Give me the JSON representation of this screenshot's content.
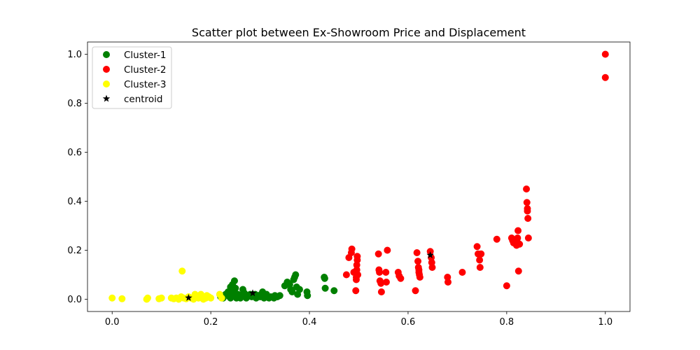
{
  "chart_data": {
    "type": "scatter",
    "title": "Scatter plot between Ex-Showroom Price and Displacement",
    "xlabel": "",
    "ylabel": "",
    "xlim": [
      -0.05,
      1.05
    ],
    "ylim": [
      -0.05,
      1.05
    ],
    "xticks": [
      "0.0",
      "0.2",
      "0.4",
      "0.6",
      "0.8",
      "1.0"
    ],
    "yticks": [
      "0.0",
      "0.2",
      "0.4",
      "0.6",
      "0.8",
      "1.0"
    ],
    "grid": false,
    "legend_position": "top-left",
    "series": [
      {
        "name": "Cluster-1",
        "color": "#008000",
        "marker": "circle",
        "points": [
          [
            0.22,
            0.01
          ],
          [
            0.225,
            0.005
          ],
          [
            0.23,
            0.02
          ],
          [
            0.235,
            0.03
          ],
          [
            0.238,
            0.01
          ],
          [
            0.24,
            0.05
          ],
          [
            0.24,
            0.005
          ],
          [
            0.242,
            0.04
          ],
          [
            0.244,
            0.06
          ],
          [
            0.245,
            0.02
          ],
          [
            0.247,
            0.03
          ],
          [
            0.248,
            0.075
          ],
          [
            0.25,
            0.01
          ],
          [
            0.25,
            0.045
          ],
          [
            0.252,
            0.005
          ],
          [
            0.255,
            0.02
          ],
          [
            0.258,
            0.015
          ],
          [
            0.26,
            0.005
          ],
          [
            0.262,
            0.01
          ],
          [
            0.265,
            0.04
          ],
          [
            0.265,
            0.02
          ],
          [
            0.268,
            0.025
          ],
          [
            0.27,
            0.01
          ],
          [
            0.272,
            0.005
          ],
          [
            0.275,
            0.015
          ],
          [
            0.28,
            0.02
          ],
          [
            0.283,
            0.01
          ],
          [
            0.29,
            0.02
          ],
          [
            0.292,
            0.005
          ],
          [
            0.295,
            0.015
          ],
          [
            0.3,
            0.01
          ],
          [
            0.302,
            0.02
          ],
          [
            0.305,
            0.03
          ],
          [
            0.308,
            0.005
          ],
          [
            0.31,
            0.01
          ],
          [
            0.313,
            0.02
          ],
          [
            0.318,
            0.005
          ],
          [
            0.322,
            0.01
          ],
          [
            0.328,
            0.005
          ],
          [
            0.33,
            0.015
          ],
          [
            0.335,
            0.01
          ],
          [
            0.34,
            0.015
          ],
          [
            0.35,
            0.055
          ],
          [
            0.355,
            0.07
          ],
          [
            0.36,
            0.06
          ],
          [
            0.362,
            0.04
          ],
          [
            0.365,
            0.03
          ],
          [
            0.368,
            0.08
          ],
          [
            0.37,
            0.09
          ],
          [
            0.372,
            0.1
          ],
          [
            0.374,
            0.05
          ],
          [
            0.376,
            0.02
          ],
          [
            0.38,
            0.04
          ],
          [
            0.395,
            0.03
          ],
          [
            0.396,
            0.015
          ],
          [
            0.43,
            0.09
          ],
          [
            0.431,
            0.085
          ],
          [
            0.432,
            0.045
          ],
          [
            0.45,
            0.035
          ]
        ]
      },
      {
        "name": "Cluster-2",
        "color": "#ff0000",
        "marker": "circle",
        "points": [
          [
            0.475,
            0.1
          ],
          [
            0.48,
            0.17
          ],
          [
            0.485,
            0.19
          ],
          [
            0.486,
            0.205
          ],
          [
            0.49,
            0.11
          ],
          [
            0.494,
            0.035
          ],
          [
            0.495,
            0.08
          ],
          [
            0.495,
            0.09
          ],
          [
            0.496,
            0.12
          ],
          [
            0.496,
            0.14
          ],
          [
            0.497,
            0.16
          ],
          [
            0.497,
            0.175
          ],
          [
            0.498,
            0.1
          ],
          [
            0.54,
            0.185
          ],
          [
            0.541,
            0.12
          ],
          [
            0.542,
            0.11
          ],
          [
            0.543,
            0.075
          ],
          [
            0.545,
            0.065
          ],
          [
            0.546,
            0.03
          ],
          [
            0.555,
            0.11
          ],
          [
            0.556,
            0.07
          ],
          [
            0.558,
            0.2
          ],
          [
            0.58,
            0.11
          ],
          [
            0.582,
            0.095
          ],
          [
            0.585,
            0.085
          ],
          [
            0.615,
            0.035
          ],
          [
            0.618,
            0.19
          ],
          [
            0.62,
            0.155
          ],
          [
            0.621,
            0.13
          ],
          [
            0.622,
            0.12
          ],
          [
            0.622,
            0.11
          ],
          [
            0.623,
            0.1
          ],
          [
            0.624,
            0.09
          ],
          [
            0.645,
            0.195
          ],
          [
            0.647,
            0.17
          ],
          [
            0.648,
            0.15
          ],
          [
            0.649,
            0.13
          ],
          [
            0.68,
            0.09
          ],
          [
            0.681,
            0.07
          ],
          [
            0.71,
            0.11
          ],
          [
            0.74,
            0.215
          ],
          [
            0.742,
            0.185
          ],
          [
            0.745,
            0.16
          ],
          [
            0.746,
            0.13
          ],
          [
            0.748,
            0.185
          ],
          [
            0.78,
            0.245
          ],
          [
            0.8,
            0.055
          ],
          [
            0.81,
            0.25
          ],
          [
            0.812,
            0.24
          ],
          [
            0.814,
            0.23
          ],
          [
            0.82,
            0.22
          ],
          [
            0.821,
            0.235
          ],
          [
            0.822,
            0.25
          ],
          [
            0.823,
            0.28
          ],
          [
            0.824,
            0.115
          ],
          [
            0.826,
            0.225
          ],
          [
            0.84,
            0.45
          ],
          [
            0.841,
            0.395
          ],
          [
            0.842,
            0.37
          ],
          [
            0.842,
            0.36
          ],
          [
            0.843,
            0.33
          ],
          [
            0.844,
            0.25
          ],
          [
            1.0,
            1.0
          ],
          [
            1.0,
            0.905
          ]
        ]
      },
      {
        "name": "Cluster-3",
        "color": "#ffff00",
        "marker": "circle",
        "points": [
          [
            0.0,
            0.005
          ],
          [
            0.02,
            0.002
          ],
          [
            0.07,
            0.0
          ],
          [
            0.072,
            0.005
          ],
          [
            0.095,
            0.002
          ],
          [
            0.1,
            0.005
          ],
          [
            0.12,
            0.005
          ],
          [
            0.125,
            0.002
          ],
          [
            0.13,
            0.005
          ],
          [
            0.135,
            0.0
          ],
          [
            0.14,
            0.01
          ],
          [
            0.142,
            0.115
          ],
          [
            0.145,
            0.005
          ],
          [
            0.15,
            0.002
          ],
          [
            0.155,
            0.01
          ],
          [
            0.16,
            0.005
          ],
          [
            0.165,
            0.0
          ],
          [
            0.168,
            0.02
          ],
          [
            0.17,
            0.01
          ],
          [
            0.175,
            0.005
          ],
          [
            0.178,
            0.015
          ],
          [
            0.18,
            0.02
          ],
          [
            0.185,
            0.0
          ],
          [
            0.19,
            0.005
          ],
          [
            0.192,
            0.015
          ],
          [
            0.196,
            0.01
          ],
          [
            0.2,
            0.005
          ],
          [
            0.218,
            0.02
          ],
          [
            0.222,
            0.005
          ]
        ]
      },
      {
        "name": "centroid",
        "color": "#000000",
        "marker": "star",
        "points": [
          [
            0.155,
            0.006
          ],
          [
            0.285,
            0.025
          ],
          [
            0.645,
            0.18
          ]
        ]
      }
    ]
  }
}
